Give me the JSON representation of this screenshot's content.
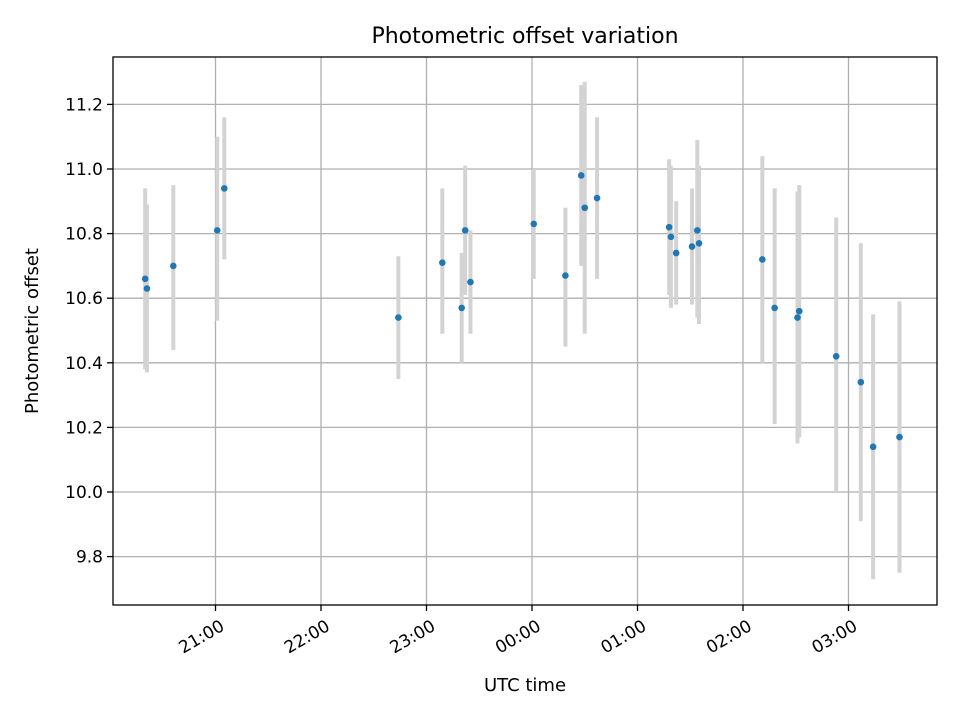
{
  "chart_data": {
    "type": "scatter",
    "title": "Photometric offset variation",
    "xlabel": "UTC time",
    "ylabel": "Photometric offset",
    "x_ticks": [
      "21:00",
      "22:00",
      "23:00",
      "00:00",
      "01:00",
      "02:00",
      "03:00"
    ],
    "y_ticks": [
      "9.8",
      "10.0",
      "10.2",
      "10.4",
      "10.6",
      "10.8",
      "11.0",
      "11.2"
    ],
    "grid": true,
    "errorbar_color": "#d3d3d3",
    "marker_color": "#1f77b4",
    "points": [
      {
        "t": "20:20",
        "y": 10.66,
        "lo": 10.38,
        "hi": 10.94
      },
      {
        "t": "20:21",
        "y": 10.63,
        "lo": 10.37,
        "hi": 10.89
      },
      {
        "t": "20:36",
        "y": 10.7,
        "lo": 10.44,
        "hi": 10.95
      },
      {
        "t": "21:01",
        "y": 10.81,
        "lo": 10.53,
        "hi": 11.1
      },
      {
        "t": "21:05",
        "y": 10.94,
        "lo": 10.72,
        "hi": 11.16
      },
      {
        "t": "22:44",
        "y": 10.54,
        "lo": 10.35,
        "hi": 10.73
      },
      {
        "t": "23:09",
        "y": 10.71,
        "lo": 10.49,
        "hi": 10.94
      },
      {
        "t": "23:20",
        "y": 10.57,
        "lo": 10.4,
        "hi": 10.74
      },
      {
        "t": "23:22",
        "y": 10.81,
        "lo": 10.61,
        "hi": 11.01
      },
      {
        "t": "23:25",
        "y": 10.65,
        "lo": 10.49,
        "hi": 10.81
      },
      {
        "t": "00:01",
        "y": 10.83,
        "lo": 10.66,
        "hi": 11.0
      },
      {
        "t": "00:19",
        "y": 10.67,
        "lo": 10.45,
        "hi": 10.88
      },
      {
        "t": "00:28",
        "y": 10.98,
        "lo": 10.7,
        "hi": 11.26
      },
      {
        "t": "00:30",
        "y": 10.88,
        "lo": 10.49,
        "hi": 11.27
      },
      {
        "t": "00:37",
        "y": 10.91,
        "lo": 10.66,
        "hi": 11.16
      },
      {
        "t": "01:18",
        "y": 10.82,
        "lo": 10.61,
        "hi": 11.03
      },
      {
        "t": "01:19",
        "y": 10.79,
        "lo": 10.57,
        "hi": 11.01
      },
      {
        "t": "01:22",
        "y": 10.74,
        "lo": 10.58,
        "hi": 10.9
      },
      {
        "t": "01:31",
        "y": 10.76,
        "lo": 10.58,
        "hi": 10.94
      },
      {
        "t": "01:34",
        "y": 10.81,
        "lo": 10.54,
        "hi": 11.09
      },
      {
        "t": "01:35",
        "y": 10.77,
        "lo": 10.52,
        "hi": 11.01
      },
      {
        "t": "02:11",
        "y": 10.72,
        "lo": 10.4,
        "hi": 11.04
      },
      {
        "t": "02:18",
        "y": 10.57,
        "lo": 10.21,
        "hi": 10.94
      },
      {
        "t": "02:31",
        "y": 10.54,
        "lo": 10.15,
        "hi": 10.93
      },
      {
        "t": "02:32",
        "y": 10.56,
        "lo": 10.17,
        "hi": 10.95
      },
      {
        "t": "02:53",
        "y": 10.42,
        "lo": 10.0,
        "hi": 10.85
      },
      {
        "t": "03:07",
        "y": 10.34,
        "lo": 9.91,
        "hi": 10.77
      },
      {
        "t": "03:14",
        "y": 10.14,
        "lo": 9.73,
        "hi": 10.55
      },
      {
        "t": "03:29",
        "y": 10.17,
        "lo": 9.75,
        "hi": 10.59
      }
    ]
  }
}
